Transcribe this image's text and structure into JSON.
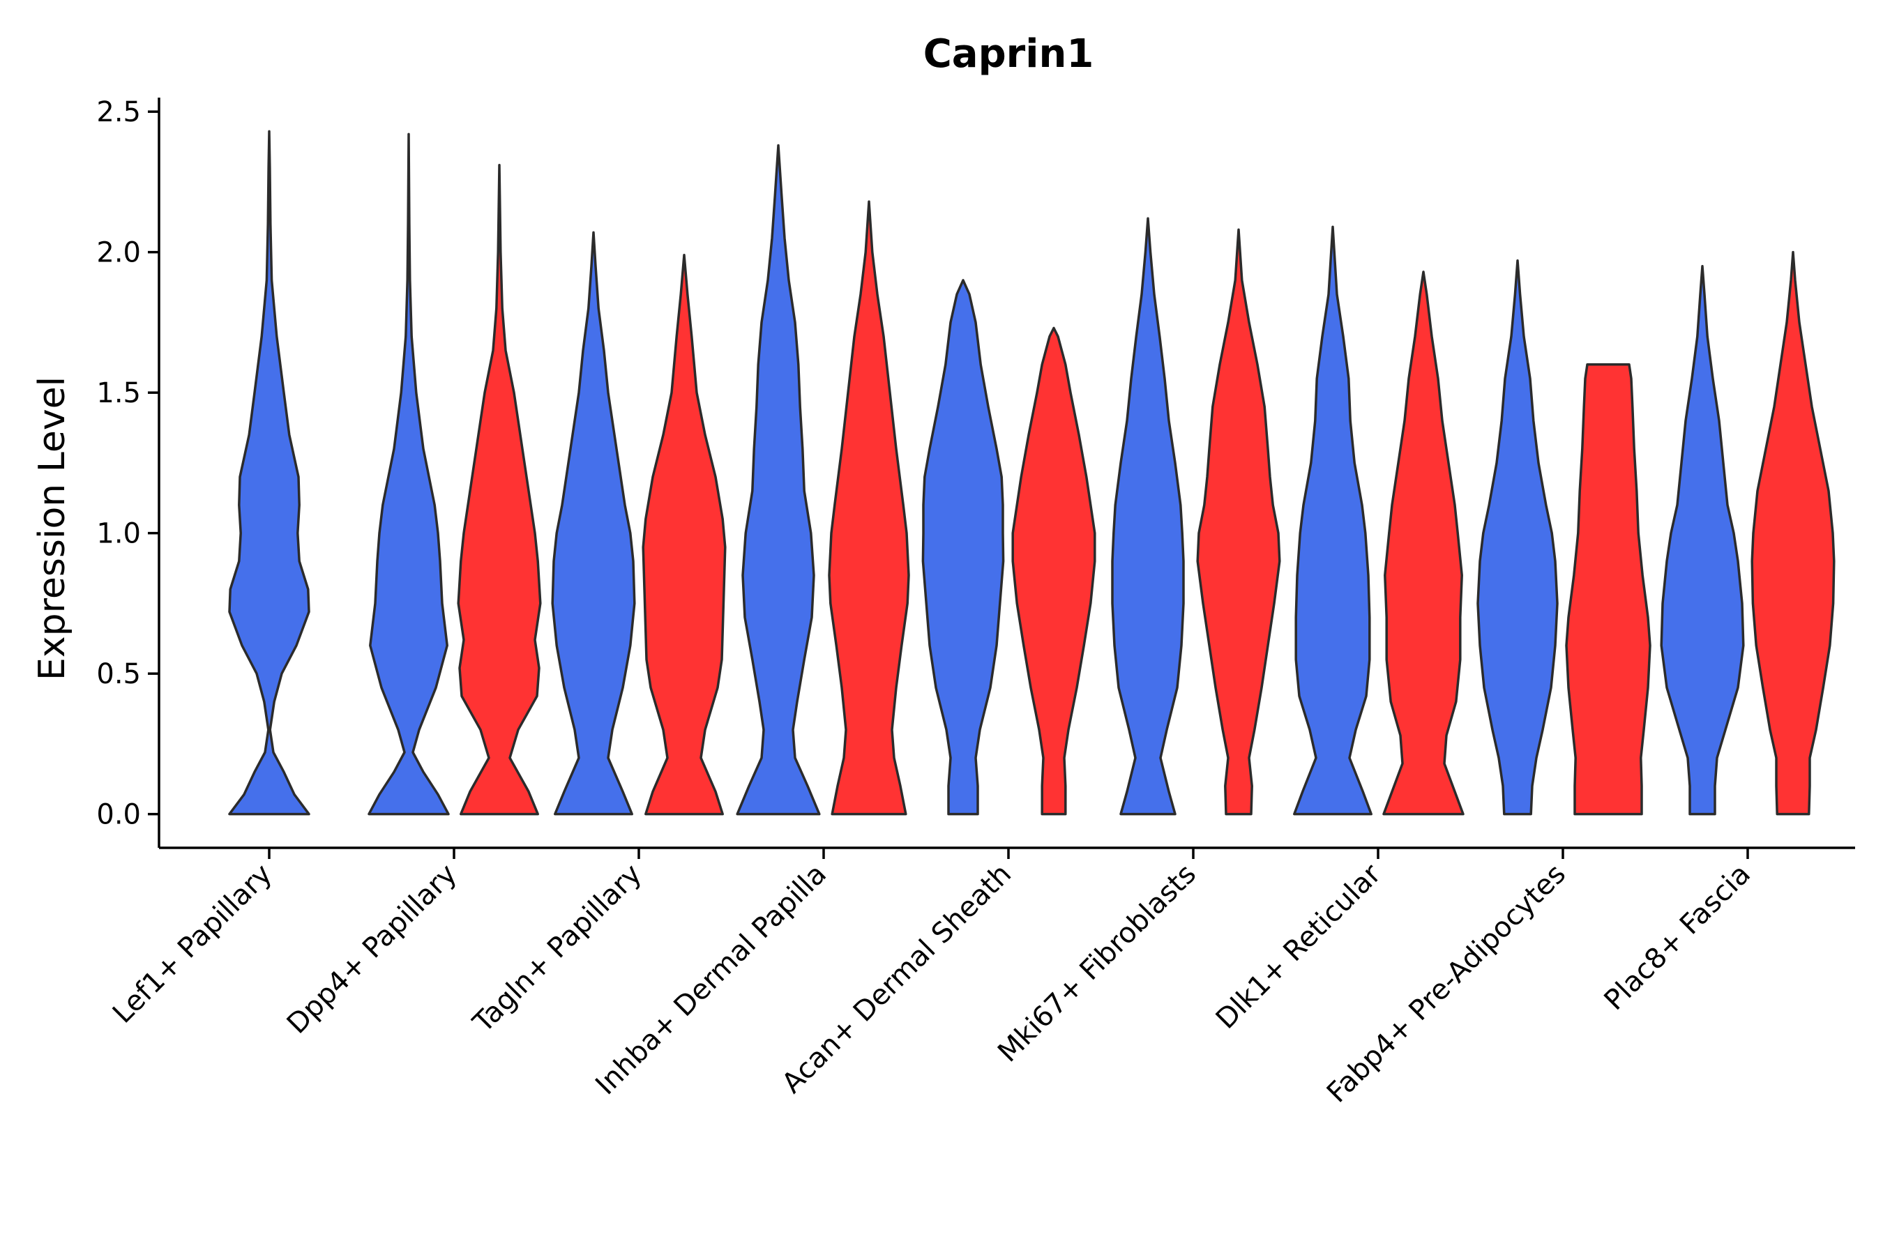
{
  "chart_data": {
    "type": "violin",
    "title": "Caprin1",
    "xlabel": "",
    "ylabel": "Expression Level",
    "ylim": [
      -0.12,
      2.55
    ],
    "yticks": [
      "0.0",
      "0.5",
      "1.0",
      "1.5",
      "2.0",
      "2.5"
    ],
    "grid": false,
    "legend": "none",
    "categories": [
      "Lef1+ Papillary",
      "Dpp4+ Papillary",
      "Tagln+ Papillary",
      "Inhba+ Dermal Papilla",
      "Acan+ Dermal Sheath",
      "Mki67+ Fibroblasts",
      "Dlk1+ Reticular",
      "Fabp4+ Pre-Adipocytes",
      "Plac8+ Fascia"
    ],
    "colors": {
      "blue": "#4570EB",
      "red": "#FF3333"
    },
    "violins": [
      {
        "category": 0,
        "color": "blue",
        "side": "center",
        "profile": [
          [
            0.0,
            0.95
          ],
          [
            0.07,
            0.6
          ],
          [
            0.15,
            0.35
          ],
          [
            0.22,
            0.1
          ],
          [
            0.3,
            0.02
          ],
          [
            0.4,
            0.12
          ],
          [
            0.5,
            0.3
          ],
          [
            0.6,
            0.65
          ],
          [
            0.72,
            0.95
          ],
          [
            0.8,
            0.93
          ],
          [
            0.9,
            0.72
          ],
          [
            1.0,
            0.68
          ],
          [
            1.1,
            0.72
          ],
          [
            1.2,
            0.7
          ],
          [
            1.35,
            0.48
          ],
          [
            1.5,
            0.35
          ],
          [
            1.7,
            0.18
          ],
          [
            1.9,
            0.06
          ],
          [
            2.1,
            0.03
          ],
          [
            2.3,
            0.015
          ],
          [
            2.43,
            0.0
          ]
        ]
      },
      {
        "category": 1,
        "color": "blue",
        "side": "left",
        "profile": [
          [
            0.0,
            0.95
          ],
          [
            0.07,
            0.7
          ],
          [
            0.15,
            0.35
          ],
          [
            0.22,
            0.1
          ],
          [
            0.3,
            0.25
          ],
          [
            0.45,
            0.65
          ],
          [
            0.6,
            0.92
          ],
          [
            0.75,
            0.8
          ],
          [
            0.9,
            0.75
          ],
          [
            1.0,
            0.7
          ],
          [
            1.1,
            0.62
          ],
          [
            1.3,
            0.35
          ],
          [
            1.5,
            0.18
          ],
          [
            1.7,
            0.07
          ],
          [
            1.9,
            0.03
          ],
          [
            2.1,
            0.015
          ],
          [
            2.42,
            0.0
          ]
        ]
      },
      {
        "category": 1,
        "color": "red",
        "side": "right",
        "profile": [
          [
            0.0,
            0.92
          ],
          [
            0.08,
            0.7
          ],
          [
            0.2,
            0.25
          ],
          [
            0.3,
            0.45
          ],
          [
            0.42,
            0.9
          ],
          [
            0.52,
            0.95
          ],
          [
            0.62,
            0.85
          ],
          [
            0.75,
            0.98
          ],
          [
            0.9,
            0.92
          ],
          [
            1.0,
            0.85
          ],
          [
            1.1,
            0.75
          ],
          [
            1.3,
            0.55
          ],
          [
            1.5,
            0.35
          ],
          [
            1.65,
            0.15
          ],
          [
            1.8,
            0.07
          ],
          [
            2.0,
            0.03
          ],
          [
            2.31,
            0.0
          ]
        ]
      },
      {
        "category": 2,
        "color": "blue",
        "side": "left",
        "profile": [
          [
            0.0,
            0.92
          ],
          [
            0.08,
            0.7
          ],
          [
            0.2,
            0.35
          ],
          [
            0.3,
            0.45
          ],
          [
            0.45,
            0.7
          ],
          [
            0.6,
            0.88
          ],
          [
            0.75,
            0.98
          ],
          [
            0.9,
            0.95
          ],
          [
            1.0,
            0.88
          ],
          [
            1.1,
            0.75
          ],
          [
            1.3,
            0.55
          ],
          [
            1.5,
            0.35
          ],
          [
            1.65,
            0.25
          ],
          [
            1.8,
            0.12
          ],
          [
            1.95,
            0.05
          ],
          [
            2.07,
            0.0
          ]
        ]
      },
      {
        "category": 2,
        "color": "red",
        "side": "right",
        "profile": [
          [
            0.0,
            0.92
          ],
          [
            0.08,
            0.75
          ],
          [
            0.2,
            0.4
          ],
          [
            0.3,
            0.5
          ],
          [
            0.45,
            0.8
          ],
          [
            0.55,
            0.9
          ],
          [
            0.65,
            0.92
          ],
          [
            0.8,
            0.95
          ],
          [
            0.95,
            0.98
          ],
          [
            1.05,
            0.92
          ],
          [
            1.2,
            0.75
          ],
          [
            1.35,
            0.5
          ],
          [
            1.5,
            0.3
          ],
          [
            1.7,
            0.18
          ],
          [
            1.85,
            0.08
          ],
          [
            1.99,
            0.0
          ]
        ]
      },
      {
        "category": 3,
        "color": "blue",
        "side": "left",
        "profile": [
          [
            0.0,
            0.98
          ],
          [
            0.1,
            0.7
          ],
          [
            0.2,
            0.4
          ],
          [
            0.3,
            0.35
          ],
          [
            0.4,
            0.45
          ],
          [
            0.55,
            0.62
          ],
          [
            0.7,
            0.8
          ],
          [
            0.85,
            0.85
          ],
          [
            1.0,
            0.78
          ],
          [
            1.15,
            0.62
          ],
          [
            1.3,
            0.58
          ],
          [
            1.45,
            0.52
          ],
          [
            1.6,
            0.48
          ],
          [
            1.75,
            0.4
          ],
          [
            1.9,
            0.25
          ],
          [
            2.05,
            0.15
          ],
          [
            2.2,
            0.08
          ],
          [
            2.38,
            0.0
          ]
        ]
      },
      {
        "category": 3,
        "color": "red",
        "side": "right",
        "profile": [
          [
            0.0,
            0.88
          ],
          [
            0.1,
            0.75
          ],
          [
            0.2,
            0.6
          ],
          [
            0.3,
            0.55
          ],
          [
            0.45,
            0.65
          ],
          [
            0.6,
            0.78
          ],
          [
            0.75,
            0.92
          ],
          [
            0.85,
            0.95
          ],
          [
            1.0,
            0.9
          ],
          [
            1.1,
            0.82
          ],
          [
            1.3,
            0.65
          ],
          [
            1.5,
            0.5
          ],
          [
            1.7,
            0.35
          ],
          [
            1.85,
            0.2
          ],
          [
            2.0,
            0.08
          ],
          [
            2.18,
            0.0
          ]
        ]
      },
      {
        "category": 4,
        "color": "blue",
        "side": "left",
        "profile": [
          [
            0.0,
            0.35
          ],
          [
            0.1,
            0.35
          ],
          [
            0.2,
            0.3
          ],
          [
            0.3,
            0.4
          ],
          [
            0.45,
            0.65
          ],
          [
            0.6,
            0.8
          ],
          [
            0.75,
            0.88
          ],
          [
            0.9,
            0.96
          ],
          [
            1.0,
            0.95
          ],
          [
            1.1,
            0.95
          ],
          [
            1.2,
            0.92
          ],
          [
            1.3,
            0.8
          ],
          [
            1.45,
            0.6
          ],
          [
            1.6,
            0.42
          ],
          [
            1.75,
            0.3
          ],
          [
            1.85,
            0.15
          ],
          [
            1.9,
            0.0
          ]
        ]
      },
      {
        "category": 4,
        "color": "red",
        "side": "right",
        "profile": [
          [
            0.0,
            0.28
          ],
          [
            0.1,
            0.28
          ],
          [
            0.2,
            0.25
          ],
          [
            0.3,
            0.35
          ],
          [
            0.45,
            0.55
          ],
          [
            0.6,
            0.72
          ],
          [
            0.75,
            0.88
          ],
          [
            0.9,
            0.98
          ],
          [
            1.0,
            0.98
          ],
          [
            1.1,
            0.88
          ],
          [
            1.2,
            0.78
          ],
          [
            1.35,
            0.6
          ],
          [
            1.5,
            0.4
          ],
          [
            1.6,
            0.28
          ],
          [
            1.7,
            0.1
          ],
          [
            1.73,
            0.0
          ]
        ]
      },
      {
        "category": 5,
        "color": "blue",
        "side": "left",
        "profile": [
          [
            0.0,
            0.65
          ],
          [
            0.08,
            0.5
          ],
          [
            0.2,
            0.3
          ],
          [
            0.3,
            0.45
          ],
          [
            0.45,
            0.7
          ],
          [
            0.6,
            0.8
          ],
          [
            0.75,
            0.85
          ],
          [
            0.9,
            0.85
          ],
          [
            1.0,
            0.82
          ],
          [
            1.1,
            0.78
          ],
          [
            1.25,
            0.65
          ],
          [
            1.4,
            0.5
          ],
          [
            1.55,
            0.4
          ],
          [
            1.7,
            0.28
          ],
          [
            1.85,
            0.15
          ],
          [
            2.0,
            0.06
          ],
          [
            2.12,
            0.0
          ]
        ]
      },
      {
        "category": 5,
        "color": "red",
        "side": "right",
        "profile": [
          [
            0.0,
            0.3
          ],
          [
            0.1,
            0.32
          ],
          [
            0.2,
            0.25
          ],
          [
            0.3,
            0.38
          ],
          [
            0.45,
            0.55
          ],
          [
            0.6,
            0.7
          ],
          [
            0.75,
            0.85
          ],
          [
            0.9,
            0.98
          ],
          [
            1.0,
            0.95
          ],
          [
            1.1,
            0.82
          ],
          [
            1.2,
            0.75
          ],
          [
            1.3,
            0.7
          ],
          [
            1.45,
            0.62
          ],
          [
            1.6,
            0.45
          ],
          [
            1.75,
            0.25
          ],
          [
            1.9,
            0.08
          ],
          [
            2.08,
            0.0
          ]
        ]
      },
      {
        "category": 6,
        "color": "blue",
        "side": "left",
        "profile": [
          [
            0.0,
            0.92
          ],
          [
            0.08,
            0.72
          ],
          [
            0.2,
            0.4
          ],
          [
            0.3,
            0.55
          ],
          [
            0.42,
            0.8
          ],
          [
            0.55,
            0.88
          ],
          [
            0.7,
            0.88
          ],
          [
            0.85,
            0.85
          ],
          [
            1.0,
            0.78
          ],
          [
            1.1,
            0.7
          ],
          [
            1.25,
            0.52
          ],
          [
            1.4,
            0.42
          ],
          [
            1.55,
            0.38
          ],
          [
            1.7,
            0.25
          ],
          [
            1.85,
            0.1
          ],
          [
            2.09,
            0.0
          ]
        ]
      },
      {
        "category": 6,
        "color": "red",
        "side": "right",
        "profile": [
          [
            0.0,
            0.95
          ],
          [
            0.08,
            0.75
          ],
          [
            0.18,
            0.5
          ],
          [
            0.28,
            0.55
          ],
          [
            0.4,
            0.78
          ],
          [
            0.55,
            0.88
          ],
          [
            0.7,
            0.88
          ],
          [
            0.85,
            0.92
          ],
          [
            1.0,
            0.82
          ],
          [
            1.1,
            0.75
          ],
          [
            1.25,
            0.6
          ],
          [
            1.4,
            0.45
          ],
          [
            1.55,
            0.35
          ],
          [
            1.7,
            0.2
          ],
          [
            1.85,
            0.08
          ],
          [
            1.93,
            0.0
          ]
        ]
      },
      {
        "category": 7,
        "color": "blue",
        "side": "left",
        "profile": [
          [
            0.0,
            0.32
          ],
          [
            0.1,
            0.35
          ],
          [
            0.2,
            0.45
          ],
          [
            0.3,
            0.6
          ],
          [
            0.45,
            0.8
          ],
          [
            0.6,
            0.9
          ],
          [
            0.75,
            0.95
          ],
          [
            0.9,
            0.9
          ],
          [
            1.0,
            0.82
          ],
          [
            1.1,
            0.68
          ],
          [
            1.25,
            0.5
          ],
          [
            1.4,
            0.38
          ],
          [
            1.55,
            0.3
          ],
          [
            1.7,
            0.15
          ],
          [
            1.85,
            0.06
          ],
          [
            1.97,
            0.0
          ]
        ]
      },
      {
        "category": 7,
        "color": "red",
        "side": "right",
        "profile": [
          [
            0.0,
            0.8
          ],
          [
            0.1,
            0.8
          ],
          [
            0.2,
            0.78
          ],
          [
            0.3,
            0.85
          ],
          [
            0.45,
            0.95
          ],
          [
            0.6,
            1.0
          ],
          [
            0.7,
            0.95
          ],
          [
            0.85,
            0.82
          ],
          [
            1.0,
            0.72
          ],
          [
            1.15,
            0.68
          ],
          [
            1.3,
            0.62
          ],
          [
            1.45,
            0.58
          ],
          [
            1.55,
            0.55
          ],
          [
            1.6,
            0.5
          ]
        ]
      },
      {
        "category": 8,
        "color": "blue",
        "side": "left",
        "profile": [
          [
            0.0,
            0.3
          ],
          [
            0.1,
            0.3
          ],
          [
            0.2,
            0.35
          ],
          [
            0.3,
            0.55
          ],
          [
            0.45,
            0.85
          ],
          [
            0.6,
            0.98
          ],
          [
            0.75,
            0.95
          ],
          [
            0.9,
            0.85
          ],
          [
            1.0,
            0.75
          ],
          [
            1.1,
            0.6
          ],
          [
            1.25,
            0.5
          ],
          [
            1.4,
            0.4
          ],
          [
            1.55,
            0.25
          ],
          [
            1.7,
            0.12
          ],
          [
            1.85,
            0.05
          ],
          [
            1.95,
            0.0
          ]
        ]
      },
      {
        "category": 8,
        "color": "red",
        "side": "right",
        "profile": [
          [
            0.0,
            0.38
          ],
          [
            0.1,
            0.4
          ],
          [
            0.2,
            0.4
          ],
          [
            0.3,
            0.55
          ],
          [
            0.45,
            0.72
          ],
          [
            0.6,
            0.88
          ],
          [
            0.75,
            0.96
          ],
          [
            0.9,
            0.98
          ],
          [
            1.0,
            0.95
          ],
          [
            1.15,
            0.85
          ],
          [
            1.3,
            0.65
          ],
          [
            1.45,
            0.45
          ],
          [
            1.6,
            0.3
          ],
          [
            1.75,
            0.15
          ],
          [
            1.9,
            0.05
          ],
          [
            2.0,
            0.0
          ]
        ]
      }
    ]
  }
}
